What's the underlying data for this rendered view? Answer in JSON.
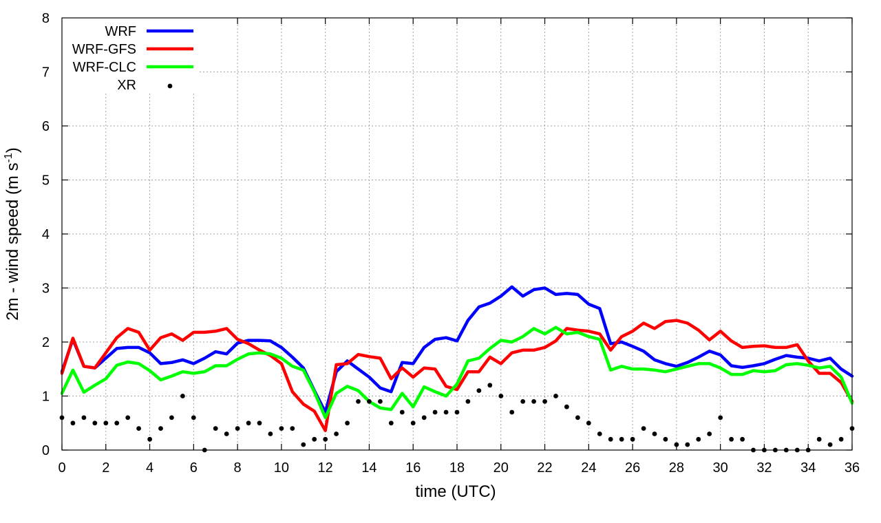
{
  "chart_data": {
    "type": "line",
    "title": "",
    "xlabel": "time (UTC)",
    "ylabel": "2m - wind speed  (m s",
    "ylabel_sup": "-1",
    "ylabel_end": ")",
    "xlim": [
      0,
      36
    ],
    "ylim": [
      0,
      8
    ],
    "xticks": [
      0,
      2,
      4,
      6,
      8,
      10,
      12,
      14,
      16,
      18,
      20,
      22,
      24,
      26,
      28,
      30,
      32,
      34,
      36
    ],
    "yticks": [
      0,
      1,
      2,
      3,
      4,
      5,
      6,
      7,
      8
    ],
    "grid": true,
    "legend_position": "top-left",
    "series": [
      {
        "name": "WRF",
        "style": "line",
        "color": "#0000ff",
        "x": [
          0,
          0.5,
          1,
          1.5,
          2,
          2.5,
          3,
          3.5,
          4,
          4.5,
          5,
          5.5,
          6,
          6.5,
          7,
          7.5,
          8,
          8.5,
          9,
          9.5,
          10,
          10.5,
          11,
          11.5,
          12,
          12.5,
          13,
          13.5,
          14,
          14.5,
          15,
          15.5,
          16,
          16.5,
          17,
          17.5,
          18,
          18.5,
          19,
          19.5,
          20,
          20.5,
          21,
          21.5,
          22,
          22.5,
          23,
          23.5,
          24,
          24.5,
          25,
          25.5,
          26,
          26.5,
          27,
          27.5,
          28,
          28.5,
          29,
          29.5,
          30,
          30.5,
          31,
          31.5,
          32,
          32.5,
          33,
          33.5,
          34,
          34.5,
          35,
          35.5,
          36
        ],
        "values": [
          1.45,
          2.05,
          1.55,
          1.52,
          1.7,
          1.88,
          1.9,
          1.9,
          1.8,
          1.6,
          1.62,
          1.67,
          1.6,
          1.7,
          1.82,
          1.78,
          1.98,
          2.03,
          2.03,
          2.02,
          1.9,
          1.72,
          1.52,
          1.1,
          0.7,
          1.45,
          1.65,
          1.5,
          1.35,
          1.15,
          1.08,
          1.62,
          1.6,
          1.9,
          2.05,
          2.08,
          2.02,
          2.4,
          2.65,
          2.72,
          2.85,
          3.02,
          2.85,
          2.97,
          3.0,
          2.88,
          2.9,
          2.88,
          2.7,
          2.62,
          1.97,
          2.0,
          1.92,
          1.83,
          1.67,
          1.6,
          1.55,
          1.62,
          1.72,
          1.83,
          1.76,
          1.56,
          1.53,
          1.56,
          1.6,
          1.68,
          1.75,
          1.72,
          1.7,
          1.65,
          1.7,
          1.5,
          1.37
        ]
      },
      {
        "name": "WRF-GFS",
        "style": "line",
        "color": "#ff0000",
        "x": [
          0,
          0.5,
          1,
          1.5,
          2,
          2.5,
          3,
          3.5,
          4,
          4.5,
          5,
          5.5,
          6,
          6.5,
          7,
          7.5,
          8,
          8.5,
          9,
          9.5,
          10,
          10.5,
          11,
          11.5,
          12,
          12.5,
          13,
          13.5,
          14,
          14.5,
          15,
          15.5,
          16,
          16.5,
          17,
          17.5,
          18,
          18.5,
          19,
          19.5,
          20,
          20.5,
          21,
          21.5,
          22,
          22.5,
          23,
          23.5,
          24,
          24.5,
          25,
          25.5,
          26,
          26.5,
          27,
          27.5,
          28,
          28.5,
          29,
          29.5,
          30,
          30.5,
          31,
          31.5,
          32,
          32.5,
          33,
          33.5,
          34,
          34.5,
          35,
          35.5,
          36
        ],
        "values": [
          1.42,
          2.07,
          1.55,
          1.52,
          1.8,
          2.08,
          2.25,
          2.18,
          1.85,
          2.08,
          2.15,
          2.03,
          2.18,
          2.18,
          2.2,
          2.25,
          2.05,
          1.97,
          1.85,
          1.75,
          1.6,
          1.08,
          0.85,
          0.72,
          0.36,
          1.58,
          1.6,
          1.77,
          1.73,
          1.7,
          1.32,
          1.52,
          1.35,
          1.52,
          1.5,
          1.18,
          1.12,
          1.45,
          1.45,
          1.72,
          1.6,
          1.8,
          1.85,
          1.85,
          1.9,
          2.02,
          2.25,
          2.22,
          2.2,
          2.15,
          1.85,
          2.1,
          2.2,
          2.35,
          2.25,
          2.38,
          2.4,
          2.35,
          2.22,
          2.04,
          2.2,
          2.02,
          1.9,
          1.92,
          1.93,
          1.9,
          1.9,
          1.95,
          1.65,
          1.42,
          1.42,
          1.25,
          0.9
        ]
      },
      {
        "name": "WRF-CLC",
        "style": "line",
        "color": "#00ff00",
        "x": [
          0,
          0.5,
          1,
          1.5,
          2,
          2.5,
          3,
          3.5,
          4,
          4.5,
          5,
          5.5,
          6,
          6.5,
          7,
          7.5,
          8,
          8.5,
          9,
          9.5,
          10,
          10.5,
          11,
          11.5,
          12,
          12.5,
          13,
          13.5,
          14,
          14.5,
          15,
          15.5,
          16,
          16.5,
          17,
          17.5,
          18,
          18.5,
          19,
          19.5,
          20,
          20.5,
          21,
          21.5,
          22,
          22.5,
          23,
          23.5,
          24,
          24.5,
          25,
          25.5,
          26,
          26.5,
          27,
          27.5,
          28,
          28.5,
          29,
          29.5,
          30,
          30.5,
          31,
          31.5,
          32,
          32.5,
          33,
          33.5,
          34,
          34.5,
          35,
          35.5,
          36
        ],
        "values": [
          1.05,
          1.48,
          1.07,
          1.2,
          1.32,
          1.57,
          1.63,
          1.6,
          1.47,
          1.3,
          1.37,
          1.45,
          1.42,
          1.45,
          1.56,
          1.56,
          1.68,
          1.78,
          1.8,
          1.78,
          1.7,
          1.55,
          1.48,
          1.08,
          0.6,
          1.05,
          1.18,
          1.1,
          0.9,
          0.78,
          0.75,
          1.05,
          0.8,
          1.17,
          1.08,
          1.0,
          1.22,
          1.65,
          1.7,
          1.88,
          2.03,
          2.0,
          2.1,
          2.25,
          2.15,
          2.27,
          2.15,
          2.18,
          2.1,
          2.05,
          1.48,
          1.55,
          1.5,
          1.5,
          1.48,
          1.45,
          1.5,
          1.55,
          1.6,
          1.6,
          1.52,
          1.4,
          1.4,
          1.47,
          1.45,
          1.47,
          1.58,
          1.6,
          1.57,
          1.52,
          1.55,
          1.35,
          0.87
        ]
      },
      {
        "name": "XR",
        "style": "points",
        "color": "#000000",
        "x": [
          0,
          0.5,
          1,
          1.5,
          2,
          2.5,
          3,
          3.5,
          4,
          4.5,
          5,
          5.5,
          6,
          6.5,
          7,
          7.5,
          8,
          8.5,
          9,
          9.5,
          10,
          10.5,
          11,
          11.5,
          12,
          12.5,
          13,
          13.5,
          14,
          14.5,
          15,
          15.5,
          16,
          16.5,
          17,
          17.5,
          18,
          18.5,
          19,
          19.5,
          20,
          20.5,
          21,
          21.5,
          22,
          22.5,
          23,
          23.5,
          24,
          24.5,
          25,
          25.5,
          26,
          26.5,
          27,
          27.5,
          28,
          28.5,
          29,
          29.5,
          30,
          30.5,
          31,
          31.5,
          32,
          32.5,
          33,
          33.5,
          34,
          34.5,
          35,
          35.5,
          36
        ],
        "values": [
          0.6,
          0.5,
          0.6,
          0.5,
          0.5,
          0.5,
          0.6,
          0.4,
          0.2,
          0.4,
          0.6,
          1.0,
          0.6,
          0.0,
          0.4,
          0.3,
          0.4,
          0.5,
          0.5,
          0.3,
          0.4,
          0.4,
          0.1,
          0.2,
          0.2,
          0.3,
          0.5,
          0.9,
          0.9,
          0.9,
          0.5,
          0.7,
          0.5,
          0.6,
          0.7,
          0.7,
          0.7,
          0.9,
          1.1,
          1.2,
          1.0,
          0.7,
          0.9,
          0.9,
          0.9,
          1.0,
          0.8,
          0.6,
          0.5,
          0.3,
          0.2,
          0.2,
          0.2,
          0.4,
          0.3,
          0.2,
          0.1,
          0.1,
          0.2,
          0.3,
          0.6,
          0.2,
          0.2,
          0.0,
          0.0,
          0.0,
          0.0,
          0.0,
          0.0,
          0.2,
          0.1,
          0.2,
          0.4
        ]
      }
    ]
  }
}
